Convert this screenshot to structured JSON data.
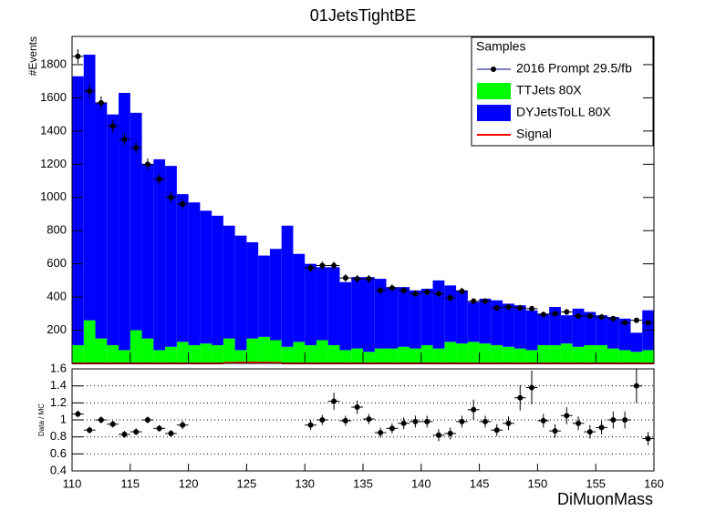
{
  "chart_data": [
    {
      "type": "histogram",
      "title": "01JetsTightBE",
      "ylabel": "#Events",
      "legend_title": "Samples",
      "bins": [
        110,
        111,
        112,
        113,
        114,
        115,
        116,
        117,
        118,
        119,
        120,
        121,
        122,
        123,
        124,
        125,
        126,
        127,
        128,
        129,
        130,
        131,
        132,
        133,
        134,
        135,
        136,
        137,
        138,
        139,
        140,
        141,
        142,
        143,
        144,
        145,
        146,
        147,
        148,
        149,
        150,
        151,
        152,
        153,
        154,
        155,
        156,
        157,
        158,
        159,
        160
      ],
      "series": [
        {
          "name": "TTJets 80X",
          "color": "#00ff00",
          "values": [
            110,
            260,
            150,
            110,
            80,
            200,
            150,
            80,
            100,
            130,
            110,
            120,
            110,
            150,
            80,
            150,
            160,
            140,
            100,
            130,
            110,
            140,
            110,
            80,
            90,
            70,
            90,
            90,
            100,
            90,
            110,
            90,
            130,
            120,
            130,
            120,
            110,
            100,
            90,
            80,
            110,
            110,
            120,
            100,
            110,
            110,
            90,
            80,
            70,
            80
          ]
        },
        {
          "name": "DYJetsToLL 80X",
          "color": "#0000ff",
          "values": [
            1620,
            1600,
            1420,
            1390,
            1550,
            1310,
            1050,
            1150,
            1090,
            890,
            860,
            800,
            780,
            680,
            690,
            580,
            490,
            550,
            730,
            530,
            490,
            440,
            470,
            410,
            430,
            450,
            420,
            370,
            360,
            350,
            340,
            410,
            340,
            320,
            240,
            270,
            270,
            260,
            260,
            240,
            190,
            230,
            170,
            230,
            200,
            180,
            190,
            190,
            115,
            240
          ]
        },
        {
          "name": "Signal",
          "color": "#ff0000",
          "histtype": "step",
          "values": [
            0,
            0,
            0,
            0,
            0,
            0,
            0,
            0,
            0,
            0,
            0,
            0,
            0,
            4,
            5,
            6,
            5,
            4,
            0,
            0,
            0,
            0,
            0,
            0,
            0,
            0,
            0,
            0,
            0,
            0,
            0,
            0,
            0,
            0,
            0,
            0,
            0,
            0,
            0,
            0,
            0,
            0,
            0,
            0,
            0,
            0,
            0,
            0,
            0,
            0
          ]
        }
      ],
      "data": {
        "name": "2016 Prompt 29.5/fb",
        "color": "#000000",
        "values": [
          1850,
          1640,
          1570,
          1430,
          1350,
          1300,
          1200,
          1110,
          1000,
          960,
          null,
          null,
          null,
          null,
          null,
          null,
          null,
          null,
          null,
          null,
          575,
          590,
          590,
          515,
          510,
          510,
          440,
          455,
          440,
          420,
          430,
          420,
          395,
          435,
          375,
          375,
          335,
          340,
          335,
          330,
          295,
          300,
          310,
          285,
          285,
          280,
          270,
          245,
          260,
          245
        ],
        "errors": [
          43,
          40,
          40,
          38,
          37,
          36,
          35,
          33,
          32,
          31,
          null,
          null,
          null,
          null,
          null,
          null,
          null,
          null,
          null,
          null,
          24,
          24,
          24,
          23,
          23,
          23,
          21,
          21,
          21,
          20,
          21,
          20,
          20,
          21,
          19,
          19,
          18,
          18,
          18,
          18,
          17,
          17,
          18,
          17,
          17,
          17,
          16,
          16,
          16,
          16
        ]
      },
      "xlim": [
        110,
        160
      ],
      "ylim": [
        0,
        1970
      ],
      "yticks": [
        200,
        400,
        600,
        800,
        1000,
        1200,
        1400,
        1600,
        1800
      ]
    },
    {
      "type": "scatter",
      "ylabel": "Data / MC",
      "xlabel": "DiMuonMass",
      "color": "#000000",
      "x": [
        110.5,
        111.5,
        112.5,
        113.5,
        114.5,
        115.5,
        116.5,
        117.5,
        118.5,
        119.5,
        130.5,
        131.5,
        132.5,
        133.5,
        134.5,
        135.5,
        136.5,
        137.5,
        138.5,
        139.5,
        140.5,
        141.5,
        142.5,
        143.5,
        144.5,
        145.5,
        146.5,
        147.5,
        148.5,
        149.5,
        150.5,
        151.5,
        152.5,
        153.5,
        154.5,
        155.5,
        156.5,
        157.5,
        158.5,
        159.5
      ],
      "values": [
        1.07,
        0.88,
        1.0,
        0.95,
        0.83,
        0.86,
        1.0,
        0.9,
        0.84,
        0.94,
        0.94,
        1.0,
        1.22,
        0.99,
        1.15,
        1.01,
        0.85,
        0.9,
        0.96,
        0.98,
        0.98,
        0.82,
        0.84,
        0.98,
        1.12,
        0.98,
        0.88,
        0.96,
        1.26,
        1.38,
        0.99,
        0.87,
        1.05,
        0.96,
        0.86,
        0.91,
        1.0,
        1.0,
        1.4,
        0.78
      ],
      "errors": [
        0.04,
        0.04,
        0.04,
        0.04,
        0.04,
        0.04,
        0.04,
        0.04,
        0.04,
        0.05,
        0.06,
        0.06,
        0.1,
        0.06,
        0.08,
        0.06,
        0.06,
        0.06,
        0.07,
        0.07,
        0.07,
        0.07,
        0.07,
        0.07,
        0.12,
        0.07,
        0.07,
        0.08,
        0.15,
        0.2,
        0.08,
        0.08,
        0.1,
        0.08,
        0.08,
        0.08,
        0.1,
        0.1,
        0.2,
        0.08
      ],
      "xlim": [
        110,
        160
      ],
      "xticks": [
        110,
        115,
        120,
        125,
        130,
        135,
        140,
        145,
        150,
        155,
        160
      ],
      "ylim": [
        0.4,
        1.6
      ],
      "yticks": [
        0.4,
        0.6,
        0.8,
        1,
        1.2,
        1.4,
        1.6
      ],
      "grid": true
    }
  ]
}
